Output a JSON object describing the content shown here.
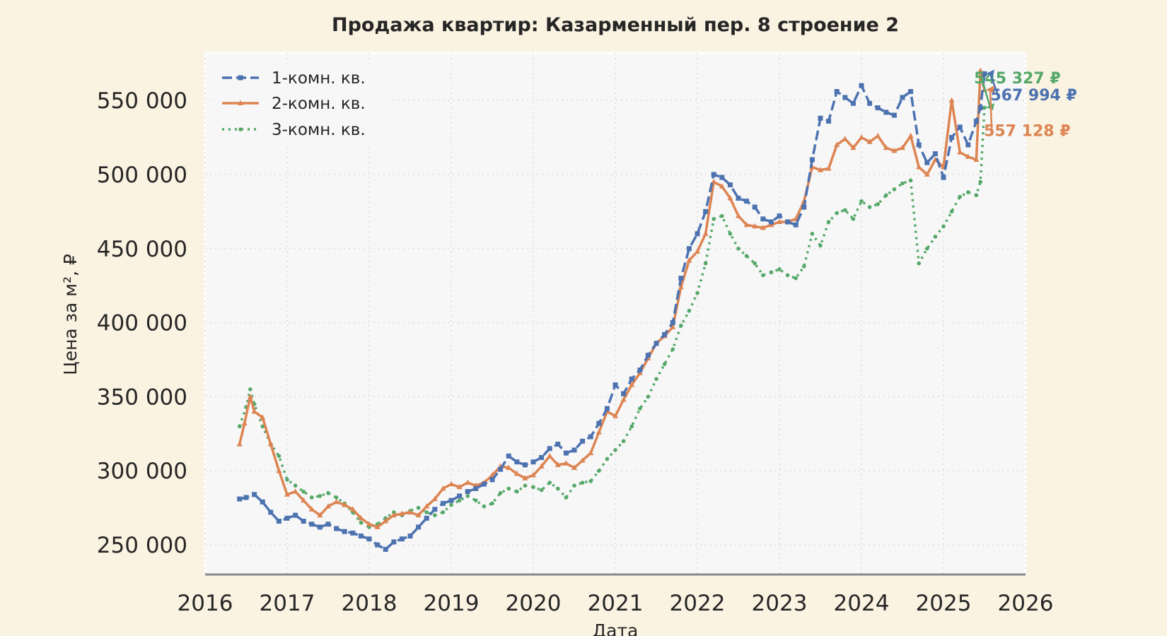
{
  "chart_data": {
    "type": "line",
    "title": "Продажа квартир: Казарменный пер. 8 строение 2",
    "xlabel": "Дата",
    "ylabel": "Цена за м², ₽",
    "xlim": [
      2016.0,
      2026.0
    ],
    "ylim": [
      230000,
      582000
    ],
    "xticks": [
      2016,
      2017,
      2018,
      2019,
      2020,
      2021,
      2022,
      2023,
      2024,
      2025,
      2026
    ],
    "xtick_labels": [
      "2016",
      "2017",
      "2018",
      "2019",
      "2020",
      "2021",
      "2022",
      "2023",
      "2024",
      "2025",
      "2026"
    ],
    "yticks": [
      250000,
      300000,
      350000,
      400000,
      450000,
      500000,
      550000
    ],
    "ytick_labels": [
      "250 000",
      "300 000",
      "350 000",
      "400 000",
      "450 000",
      "500 000",
      "550 000"
    ],
    "grid": true,
    "legend_position": "top-left",
    "series": [
      {
        "name": "1-комн. кв.",
        "color": "#4c72b0",
        "style": "dashed-square",
        "points": [
          [
            2016.42,
            281000
          ],
          [
            2016.5,
            282000
          ],
          [
            2016.6,
            284000
          ],
          [
            2016.7,
            279000
          ],
          [
            2016.8,
            272000
          ],
          [
            2016.9,
            266000
          ],
          [
            2017.0,
            268000
          ],
          [
            2017.1,
            270000
          ],
          [
            2017.2,
            266000
          ],
          [
            2017.3,
            264000
          ],
          [
            2017.4,
            262000
          ],
          [
            2017.5,
            264000
          ],
          [
            2017.6,
            261000
          ],
          [
            2017.7,
            259000
          ],
          [
            2017.8,
            258000
          ],
          [
            2017.9,
            256000
          ],
          [
            2018.0,
            254000
          ],
          [
            2018.1,
            250000
          ],
          [
            2018.2,
            247000
          ],
          [
            2018.3,
            252000
          ],
          [
            2018.4,
            254000
          ],
          [
            2018.5,
            256000
          ],
          [
            2018.6,
            262000
          ],
          [
            2018.7,
            268000
          ],
          [
            2018.8,
            274000
          ],
          [
            2018.9,
            278000
          ],
          [
            2019.0,
            280000
          ],
          [
            2019.1,
            283000
          ],
          [
            2019.2,
            286000
          ],
          [
            2019.3,
            288000
          ],
          [
            2019.4,
            291000
          ],
          [
            2019.5,
            294000
          ],
          [
            2019.6,
            301000
          ],
          [
            2019.7,
            310000
          ],
          [
            2019.8,
            306000
          ],
          [
            2019.9,
            304000
          ],
          [
            2020.0,
            306000
          ],
          [
            2020.1,
            309000
          ],
          [
            2020.2,
            315000
          ],
          [
            2020.3,
            318000
          ],
          [
            2020.4,
            312000
          ],
          [
            2020.5,
            314000
          ],
          [
            2020.6,
            320000
          ],
          [
            2020.7,
            323000
          ],
          [
            2020.8,
            332000
          ],
          [
            2020.9,
            342000
          ],
          [
            2021.0,
            358000
          ],
          [
            2021.1,
            352000
          ],
          [
            2021.2,
            362000
          ],
          [
            2021.3,
            368000
          ],
          [
            2021.4,
            378000
          ],
          [
            2021.5,
            386000
          ],
          [
            2021.6,
            392000
          ],
          [
            2021.7,
            400000
          ],
          [
            2021.8,
            430000
          ],
          [
            2021.9,
            450000
          ],
          [
            2022.0,
            460000
          ],
          [
            2022.1,
            475000
          ],
          [
            2022.2,
            500000
          ],
          [
            2022.3,
            498000
          ],
          [
            2022.4,
            493000
          ],
          [
            2022.5,
            484000
          ],
          [
            2022.6,
            482000
          ],
          [
            2022.7,
            478000
          ],
          [
            2022.8,
            470000
          ],
          [
            2022.9,
            468000
          ],
          [
            2023.0,
            472000
          ],
          [
            2023.1,
            468000
          ],
          [
            2023.2,
            466000
          ],
          [
            2023.3,
            478000
          ],
          [
            2023.4,
            510000
          ],
          [
            2023.5,
            538000
          ],
          [
            2023.6,
            536000
          ],
          [
            2023.7,
            556000
          ],
          [
            2023.8,
            552000
          ],
          [
            2023.9,
            548000
          ],
          [
            2024.0,
            560000
          ],
          [
            2024.1,
            548000
          ],
          [
            2024.2,
            545000
          ],
          [
            2024.3,
            542000
          ],
          [
            2024.4,
            540000
          ],
          [
            2024.5,
            552000
          ],
          [
            2024.6,
            556000
          ],
          [
            2024.7,
            520000
          ],
          [
            2024.8,
            508000
          ],
          [
            2024.9,
            514000
          ],
          [
            2025.0,
            498000
          ],
          [
            2025.1,
            525000
          ],
          [
            2025.2,
            532000
          ],
          [
            2025.3,
            520000
          ],
          [
            2025.4,
            536000
          ],
          [
            2025.45,
            545000
          ],
          [
            2025.5,
            568000
          ]
        ]
      },
      {
        "name": "2-комн. кв.",
        "color": "#dd8452",
        "style": "solid-triangle",
        "points": [
          [
            2016.42,
            318000
          ],
          [
            2016.48,
            332000
          ],
          [
            2016.55,
            350000
          ],
          [
            2016.6,
            340000
          ],
          [
            2016.7,
            336000
          ],
          [
            2016.8,
            318000
          ],
          [
            2016.9,
            300000
          ],
          [
            2017.0,
            284000
          ],
          [
            2017.1,
            286000
          ],
          [
            2017.2,
            280000
          ],
          [
            2017.3,
            274000
          ],
          [
            2017.4,
            270000
          ],
          [
            2017.5,
            276000
          ],
          [
            2017.6,
            279000
          ],
          [
            2017.7,
            277000
          ],
          [
            2017.8,
            274000
          ],
          [
            2017.9,
            268000
          ],
          [
            2018.0,
            264000
          ],
          [
            2018.1,
            262000
          ],
          [
            2018.2,
            266000
          ],
          [
            2018.3,
            270000
          ],
          [
            2018.4,
            271000
          ],
          [
            2018.5,
            272000
          ],
          [
            2018.6,
            270000
          ],
          [
            2018.7,
            276000
          ],
          [
            2018.8,
            281000
          ],
          [
            2018.9,
            288000
          ],
          [
            2019.0,
            291000
          ],
          [
            2019.1,
            289000
          ],
          [
            2019.2,
            292000
          ],
          [
            2019.3,
            290000
          ],
          [
            2019.4,
            292000
          ],
          [
            2019.5,
            297000
          ],
          [
            2019.6,
            303000
          ],
          [
            2019.7,
            302000
          ],
          [
            2019.8,
            298000
          ],
          [
            2019.9,
            295000
          ],
          [
            2020.0,
            297000
          ],
          [
            2020.1,
            303000
          ],
          [
            2020.2,
            310000
          ],
          [
            2020.3,
            304000
          ],
          [
            2020.4,
            305000
          ],
          [
            2020.5,
            302000
          ],
          [
            2020.6,
            307000
          ],
          [
            2020.7,
            312000
          ],
          [
            2020.8,
            326000
          ],
          [
            2020.9,
            340000
          ],
          [
            2021.0,
            337000
          ],
          [
            2021.1,
            348000
          ],
          [
            2021.2,
            358000
          ],
          [
            2021.3,
            366000
          ],
          [
            2021.4,
            376000
          ],
          [
            2021.5,
            386000
          ],
          [
            2021.6,
            391000
          ],
          [
            2021.7,
            397000
          ],
          [
            2021.8,
            424000
          ],
          [
            2021.9,
            442000
          ],
          [
            2022.0,
            448000
          ],
          [
            2022.1,
            460000
          ],
          [
            2022.2,
            495000
          ],
          [
            2022.3,
            492000
          ],
          [
            2022.4,
            484000
          ],
          [
            2022.5,
            472000
          ],
          [
            2022.6,
            466000
          ],
          [
            2022.7,
            465000
          ],
          [
            2022.8,
            464000
          ],
          [
            2022.9,
            466000
          ],
          [
            2023.0,
            468000
          ],
          [
            2023.1,
            468000
          ],
          [
            2023.2,
            470000
          ],
          [
            2023.3,
            482000
          ],
          [
            2023.4,
            505000
          ],
          [
            2023.5,
            503000
          ],
          [
            2023.6,
            504000
          ],
          [
            2023.7,
            520000
          ],
          [
            2023.8,
            524000
          ],
          [
            2023.9,
            518000
          ],
          [
            2024.0,
            525000
          ],
          [
            2024.1,
            522000
          ],
          [
            2024.2,
            526000
          ],
          [
            2024.3,
            518000
          ],
          [
            2024.4,
            516000
          ],
          [
            2024.5,
            518000
          ],
          [
            2024.6,
            526000
          ],
          [
            2024.7,
            505000
          ],
          [
            2024.8,
            500000
          ],
          [
            2024.9,
            510000
          ],
          [
            2025.0,
            505000
          ],
          [
            2025.1,
            550000
          ],
          [
            2025.2,
            515000
          ],
          [
            2025.3,
            512000
          ],
          [
            2025.4,
            510000
          ],
          [
            2025.45,
            570000
          ],
          [
            2025.5,
            557000
          ]
        ]
      },
      {
        "name": "3-комн. кв.",
        "color": "#55a868",
        "style": "dotted-star",
        "points": [
          [
            2016.42,
            330000
          ],
          [
            2016.5,
            343000
          ],
          [
            2016.55,
            355000
          ],
          [
            2016.6,
            345000
          ],
          [
            2016.7,
            330000
          ],
          [
            2016.8,
            318000
          ],
          [
            2016.9,
            310000
          ],
          [
            2017.0,
            294000
          ],
          [
            2017.1,
            290000
          ],
          [
            2017.2,
            286000
          ],
          [
            2017.3,
            282000
          ],
          [
            2017.4,
            283000
          ],
          [
            2017.5,
            285000
          ],
          [
            2017.6,
            282000
          ],
          [
            2017.7,
            278000
          ],
          [
            2017.8,
            272000
          ],
          [
            2017.9,
            265000
          ],
          [
            2018.0,
            262000
          ],
          [
            2018.1,
            264000
          ],
          [
            2018.2,
            268000
          ],
          [
            2018.3,
            272000
          ],
          [
            2018.4,
            270000
          ],
          [
            2018.5,
            273000
          ],
          [
            2018.6,
            275000
          ],
          [
            2018.7,
            272000
          ],
          [
            2018.8,
            270000
          ],
          [
            2018.9,
            272000
          ],
          [
            2019.0,
            277000
          ],
          [
            2019.1,
            280000
          ],
          [
            2019.2,
            283000
          ],
          [
            2019.3,
            280000
          ],
          [
            2019.4,
            276000
          ],
          [
            2019.5,
            278000
          ],
          [
            2019.6,
            285000
          ],
          [
            2019.7,
            288000
          ],
          [
            2019.8,
            286000
          ],
          [
            2019.9,
            290000
          ],
          [
            2020.0,
            289000
          ],
          [
            2020.1,
            287000
          ],
          [
            2020.2,
            292000
          ],
          [
            2020.3,
            288000
          ],
          [
            2020.4,
            282000
          ],
          [
            2020.5,
            290000
          ],
          [
            2020.6,
            292000
          ],
          [
            2020.7,
            293000
          ],
          [
            2020.8,
            300000
          ],
          [
            2020.9,
            308000
          ],
          [
            2021.0,
            314000
          ],
          [
            2021.1,
            320000
          ],
          [
            2021.2,
            330000
          ],
          [
            2021.3,
            342000
          ],
          [
            2021.4,
            350000
          ],
          [
            2021.5,
            362000
          ],
          [
            2021.6,
            372000
          ],
          [
            2021.7,
            382000
          ],
          [
            2021.8,
            398000
          ],
          [
            2021.9,
            408000
          ],
          [
            2022.0,
            420000
          ],
          [
            2022.1,
            440000
          ],
          [
            2022.2,
            470000
          ],
          [
            2022.3,
            472000
          ],
          [
            2022.4,
            460000
          ],
          [
            2022.5,
            450000
          ],
          [
            2022.6,
            445000
          ],
          [
            2022.7,
            440000
          ],
          [
            2022.8,
            432000
          ],
          [
            2022.9,
            434000
          ],
          [
            2023.0,
            436000
          ],
          [
            2023.1,
            432000
          ],
          [
            2023.2,
            430000
          ],
          [
            2023.3,
            438000
          ],
          [
            2023.4,
            460000
          ],
          [
            2023.5,
            452000
          ],
          [
            2023.6,
            468000
          ],
          [
            2023.7,
            474000
          ],
          [
            2023.8,
            476000
          ],
          [
            2023.9,
            470000
          ],
          [
            2024.0,
            482000
          ],
          [
            2024.1,
            478000
          ],
          [
            2024.2,
            480000
          ],
          [
            2024.3,
            486000
          ],
          [
            2024.4,
            490000
          ],
          [
            2024.5,
            494000
          ],
          [
            2024.6,
            496000
          ],
          [
            2024.7,
            440000
          ],
          [
            2024.8,
            450000
          ],
          [
            2024.9,
            458000
          ],
          [
            2025.0,
            465000
          ],
          [
            2025.1,
            475000
          ],
          [
            2025.2,
            485000
          ],
          [
            2025.3,
            488000
          ],
          [
            2025.4,
            486000
          ],
          [
            2025.45,
            495000
          ],
          [
            2025.5,
            545000
          ]
        ]
      }
    ],
    "annotations": [
      {
        "text": "545 327 ₽",
        "series": 2,
        "x": 2025.5,
        "y": 545327,
        "label_x": 2025.9,
        "label_y": 561500
      },
      {
        "text": "567 994 ₽",
        "series": 0,
        "x": 2025.5,
        "y": 567994,
        "label_x": 2026.1,
        "label_y": 550000
      },
      {
        "text": "557 128 ₽",
        "series": 1,
        "x": 2025.5,
        "y": 557128,
        "label_x": 2026.02,
        "label_y": 526000
      }
    ]
  }
}
